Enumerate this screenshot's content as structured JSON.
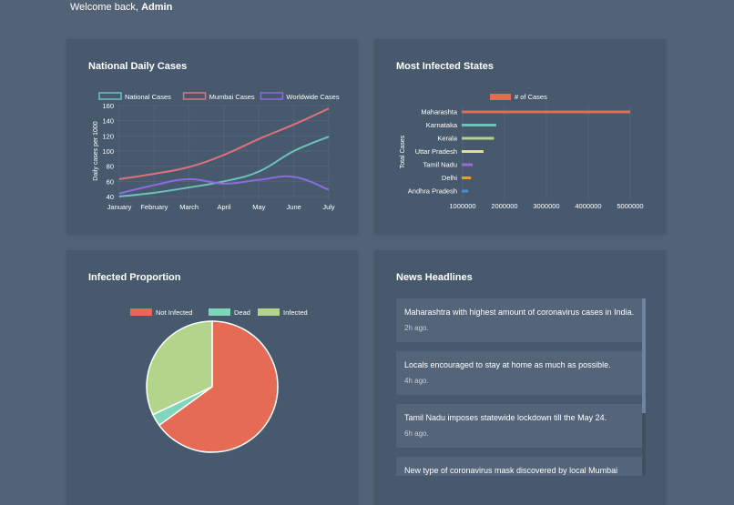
{
  "header": {
    "welcome_prefix": "Welcome back, ",
    "user": "Admin"
  },
  "colors": {
    "national": "#6cc3bd",
    "mumbai": "#e0707d",
    "worldwide": "#8c6be0",
    "not_infected": "#e56b55",
    "dead": "#7ed6bd",
    "infected": "#b2d58b"
  },
  "line_card": {
    "title": "National Daily Cases"
  },
  "bar_card": {
    "title": "Most Infected States"
  },
  "pie_card": {
    "title": "Infected Proportion"
  },
  "news_card": {
    "title": "News Headlines",
    "items": [
      {
        "headline": "Maharashtra with highest amount of coronavirus cases in India.",
        "time": "2h ago."
      },
      {
        "headline": "Locals encouraged to stay at home as much as possible.",
        "time": "4h ago."
      },
      {
        "headline": "Tamil Nadu imposes statewide lockdown till the May 24.",
        "time": "6h ago."
      },
      {
        "headline": "New type of coronavirus mask discovered by local Mumbai",
        "time": ""
      }
    ]
  },
  "chart_data": [
    {
      "type": "line",
      "categories": [
        "January",
        "February",
        "March",
        "April",
        "May",
        "June",
        "July"
      ],
      "ylabel": "Daily cases per 1000",
      "ylim": [
        40,
        160
      ],
      "yticks": [
        40,
        60,
        80,
        100,
        120,
        140,
        160
      ],
      "legend": "top",
      "grid": true,
      "series": [
        {
          "name": "National Cases",
          "color": "#6cc3bd",
          "values": [
            40,
            45,
            52,
            60,
            73,
            100,
            119
          ]
        },
        {
          "name": "Mumbai Cases",
          "color": "#e0707d",
          "values": [
            63,
            70,
            79,
            95,
            116,
            135,
            156
          ]
        },
        {
          "name": "Worldwide Cases",
          "color": "#8c6be0",
          "values": [
            44,
            55,
            63,
            57,
            62,
            66,
            49
          ]
        }
      ]
    },
    {
      "type": "bar",
      "orientation": "horizontal",
      "categories": [
        "Maharashta",
        "Karnataka",
        "Kerala",
        "Uttar Pradesh",
        "Tamil Nadu",
        "Delhi",
        "Andhra Pradesh"
      ],
      "ylabel": "Total Cases",
      "xlim": [
        1000000,
        5000000
      ],
      "xticks": [
        1000000,
        2000000,
        3000000,
        4000000,
        5000000
      ],
      "legend": "top",
      "grid": true,
      "series": [
        {
          "name": "# of Cases",
          "values": [
            5000000,
            1800000,
            1750000,
            1500000,
            1240000,
            1200000,
            1130000
          ]
        }
      ],
      "bar_colors": [
        "#e56b55",
        "#6cc3bd",
        "#b2d58b",
        "#e3e07a",
        "#9a6ad8",
        "#e0a040",
        "#4a8be0"
      ]
    },
    {
      "type": "pie",
      "legend": "top",
      "labels": [
        "Not Infected",
        "Dead",
        "Infected"
      ],
      "values": [
        65,
        3,
        32
      ],
      "colors": [
        "#e56b55",
        "#7ed6bd",
        "#b2d58b"
      ]
    }
  ]
}
